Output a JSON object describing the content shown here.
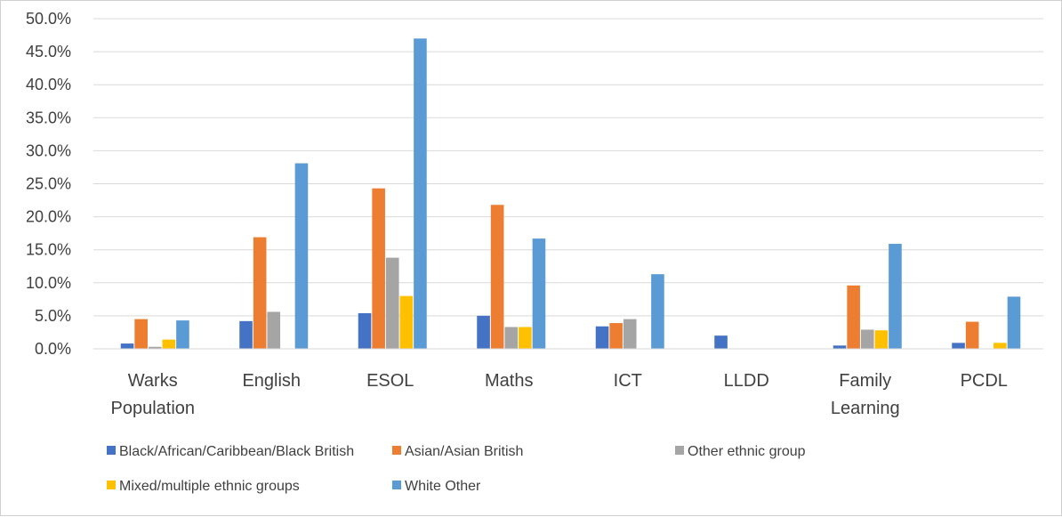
{
  "chart_data": {
    "type": "bar",
    "title": "",
    "xlabel": "",
    "ylabel": "",
    "ylim": [
      0,
      50
    ],
    "y_tick_step": 5,
    "y_tick_format": "percent_1dp",
    "grid": true,
    "legend_position": "bottom",
    "categories": [
      [
        "Warks",
        "Population"
      ],
      [
        "English"
      ],
      [
        "ESOL"
      ],
      [
        "Maths"
      ],
      [
        "ICT"
      ],
      [
        "LLDD"
      ],
      [
        "Family",
        "Learning"
      ],
      [
        "PCDL"
      ]
    ],
    "series": [
      {
        "name": "Black/African/Caribbean/Black British",
        "color": "#4472C4",
        "values": [
          0.8,
          4.2,
          5.4,
          5.0,
          3.4,
          2.0,
          0.5,
          0.9
        ]
      },
      {
        "name": "Asian/Asian British",
        "color": "#ED7D31",
        "values": [
          4.5,
          16.9,
          24.3,
          21.8,
          3.9,
          0,
          9.6,
          4.1
        ]
      },
      {
        "name": "Other ethnic group",
        "color": "#A5A5A5",
        "values": [
          0.3,
          5.6,
          13.8,
          3.3,
          4.5,
          0,
          2.9,
          0
        ]
      },
      {
        "name": "Mixed/multiple ethnic groups",
        "color": "#FFC000",
        "values": [
          1.4,
          0,
          8.0,
          3.3,
          0,
          0,
          2.8,
          0.9
        ]
      },
      {
        "name": "White Other",
        "color": "#5B9BD5",
        "values": [
          4.3,
          28.1,
          47.0,
          16.7,
          11.3,
          0,
          15.9,
          7.9
        ]
      }
    ]
  }
}
